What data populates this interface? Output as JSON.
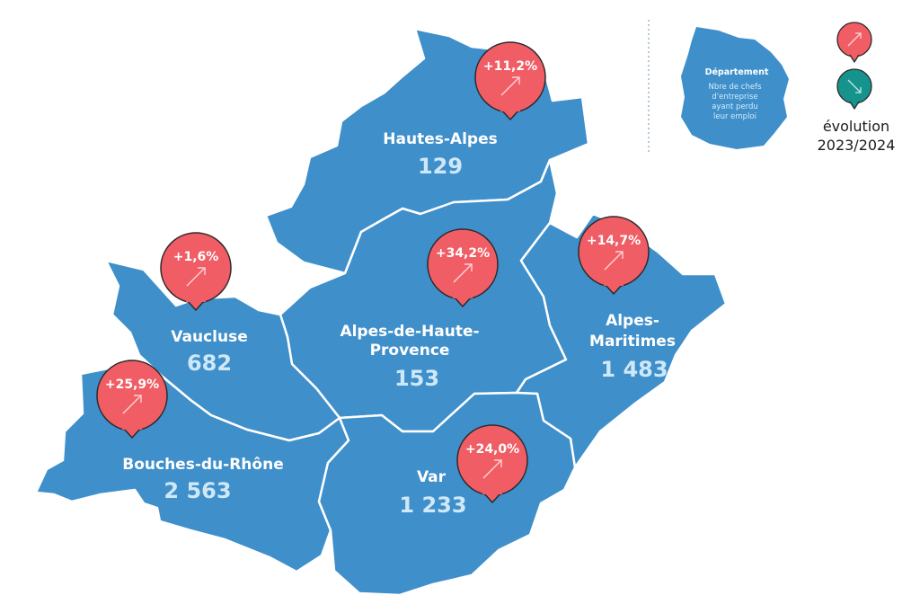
{
  "colors": {
    "region_fill": "#3f8fcb",
    "border": "#ffffff",
    "increase": "#f05d65",
    "decrease": "#16938c",
    "value_text": "#cfe8f7"
  },
  "legend": {
    "title": "Département",
    "subtitle_lines": [
      "Nbre de chefs",
      "d'entreprise",
      "ayant perdu",
      "leur emploi"
    ],
    "increase_icon": "arrow-up-right-icon",
    "decrease_icon": "arrow-down-right-icon",
    "evolution_line1": "évolution",
    "evolution_line2": "2023/2024"
  },
  "departments": [
    {
      "id": "hautes-alpes",
      "name_lines": [
        "Hautes-Alpes"
      ],
      "value": "129",
      "evolution": "+11,2%",
      "trend": "up"
    },
    {
      "id": "alpes-de-haute-provence",
      "name_lines": [
        "Alpes-de-Haute-",
        "Provence"
      ],
      "value": "153",
      "evolution": "+34,2%",
      "trend": "up"
    },
    {
      "id": "alpes-maritimes",
      "name_lines": [
        "Alpes-",
        "Maritimes"
      ],
      "value": "1 483",
      "evolution": "+14,7%",
      "trend": "up"
    },
    {
      "id": "vaucluse",
      "name_lines": [
        "Vaucluse"
      ],
      "value": "682",
      "evolution": "+1,6%",
      "trend": "up"
    },
    {
      "id": "bouches-du-rhone",
      "name_lines": [
        "Bouches-du-Rhône"
      ],
      "value": "2 563",
      "evolution": "+25,9%",
      "trend": "up"
    },
    {
      "id": "var",
      "name_lines": [
        "Var"
      ],
      "value": "1 233",
      "evolution": "+24,0%",
      "trend": "up"
    }
  ]
}
